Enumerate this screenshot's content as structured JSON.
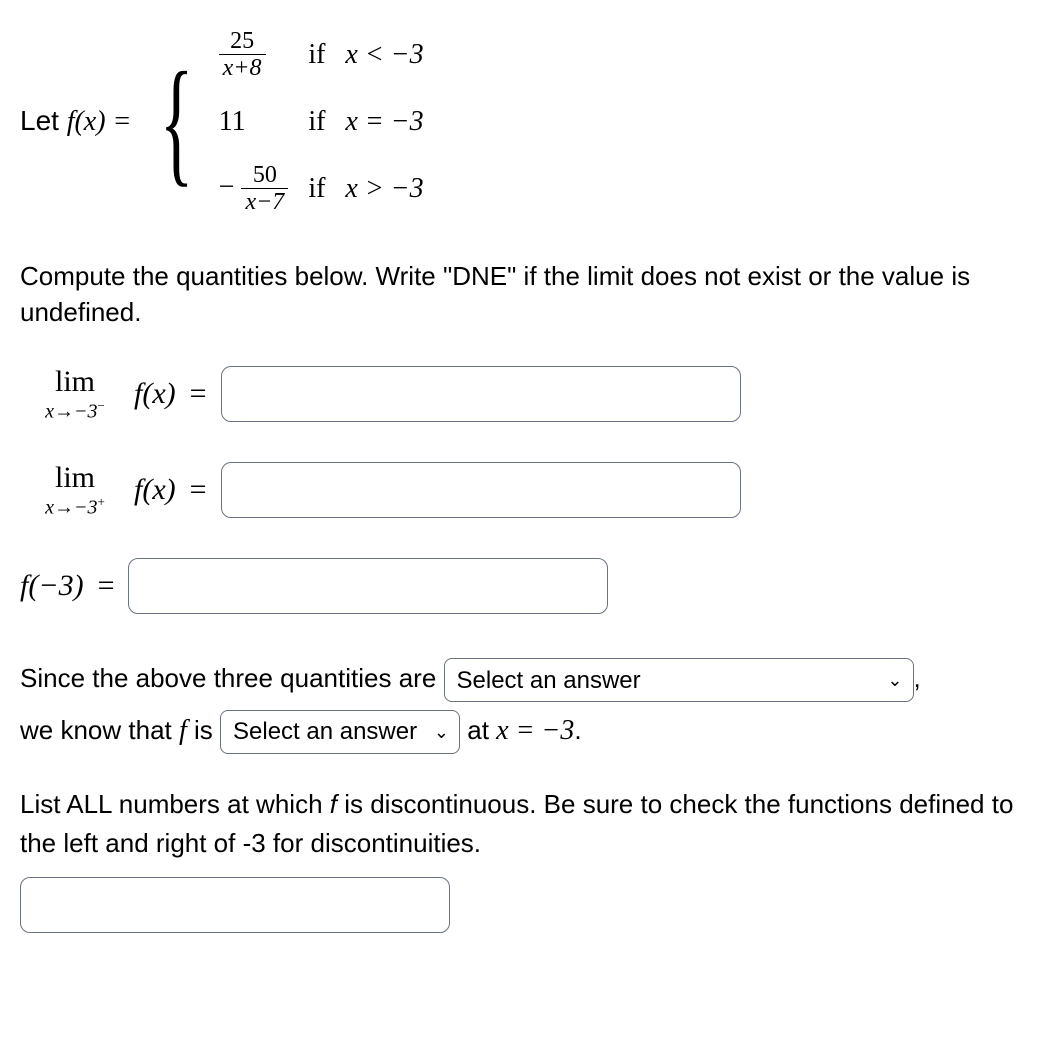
{
  "definition": {
    "lead": "Let ",
    "func_lhs": "f(x) = ",
    "cases": [
      {
        "expr_num": "25",
        "expr_den": "x+8",
        "has_frac": true,
        "neg": false,
        "if": "if",
        "cond": "x < −3"
      },
      {
        "expr_plain": "11",
        "has_frac": false,
        "neg": false,
        "if": "if",
        "cond": "x = −3"
      },
      {
        "expr_num": "50",
        "expr_den": "x−7",
        "has_frac": true,
        "neg": true,
        "if": "if",
        "cond": "x > −3"
      }
    ]
  },
  "instructions": "Compute the quantities below. Write \"DNE\" if the limit does not exist or the value is undefined.",
  "limits": {
    "left": {
      "lim_label": "lim",
      "sub": "x→−3",
      "sup": "−",
      "fx": "f(x)",
      "eq": "="
    },
    "right": {
      "lim_label": "lim",
      "sub": "x→−3",
      "sup": "+",
      "fx": "f(x)",
      "eq": "="
    },
    "value": {
      "lhs": "f(−3)",
      "eq": "="
    }
  },
  "conclusion": {
    "line1_a": "Since the above three quantities are ",
    "select1_placeholder": "Select an answer",
    "line1_b": ",",
    "line2_a": "we know that ",
    "f_sym": "f",
    "line2_b": " is ",
    "select2_placeholder": "Select an answer",
    "line2_c": " at ",
    "at_expr": "x = −3",
    "period": "."
  },
  "final": {
    "text_a": "List ALL numbers at which ",
    "f_sym": "f",
    "text_b": " is discontinuous. Be sure to check the functions defined to the left and right of -3 for discontinuities."
  },
  "style": {
    "text_color": "#000000",
    "background_color": "#ffffff",
    "input_border_color": "#6b7280",
    "body_fontsize": 26,
    "math_fontsize": 28
  }
}
